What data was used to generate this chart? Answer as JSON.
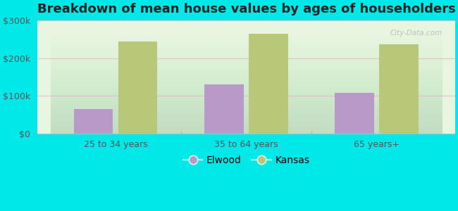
{
  "title": "Breakdown of mean house values by ages of householders",
  "categories": [
    "25 to 34 years",
    "35 to 64 years",
    "65 years+"
  ],
  "elwood_values": [
    65000,
    130000,
    107000
  ],
  "kansas_values": [
    245000,
    265000,
    237000
  ],
  "elwood_color": "#b899c8",
  "kansas_color": "#b8c878",
  "background_outer": "#00e8e8",
  "background_inner_top": "#e8f5e0",
  "background_inner_bottom": "#f0faf0",
  "ylim": [
    0,
    300000
  ],
  "yticks": [
    0,
    100000,
    200000,
    300000
  ],
  "ytick_labels": [
    "$0",
    "$100k",
    "$200k",
    "$300k"
  ],
  "legend_labels": [
    "Elwood",
    "Kansas"
  ],
  "bar_width": 0.3,
  "title_fontsize": 13,
  "tick_fontsize": 9,
  "legend_fontsize": 10,
  "watermark": "City-Data.com",
  "watermark_color": "#aaaaaa"
}
